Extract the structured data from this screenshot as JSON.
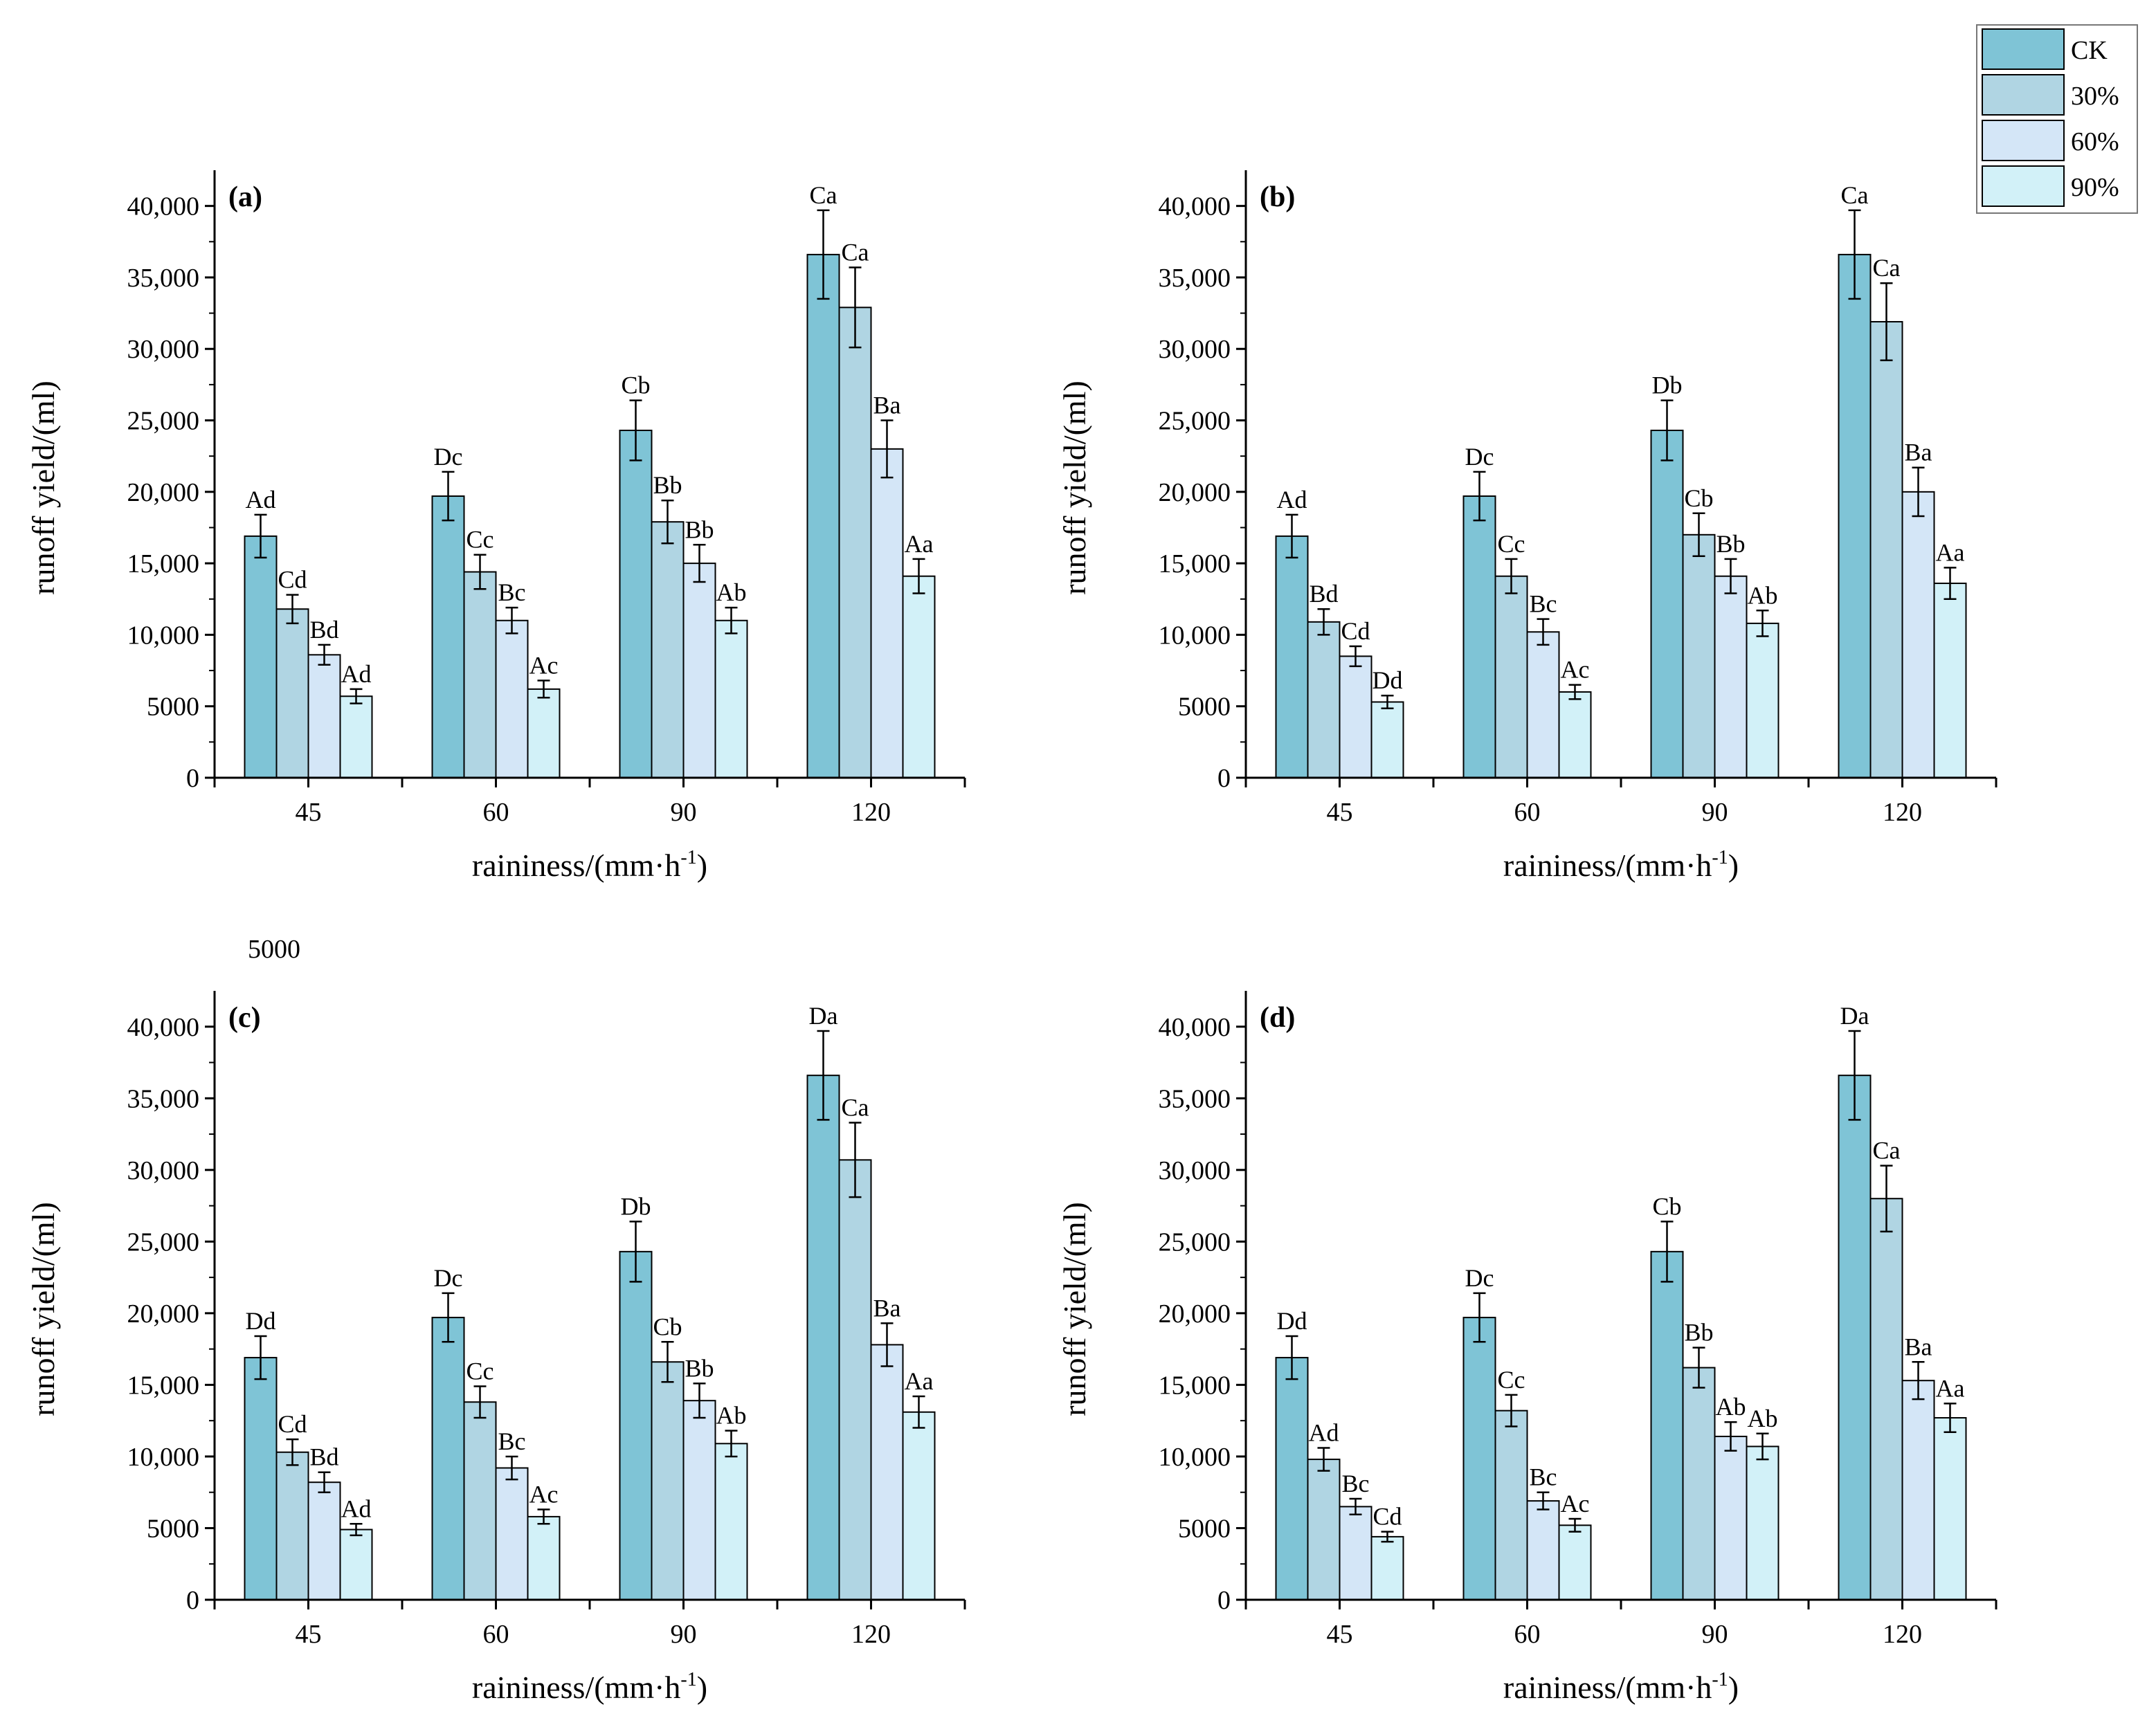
{
  "legend": {
    "entries": [
      "CK",
      "30%",
      "60%",
      "90%"
    ],
    "colors": [
      "#7fc4d6",
      "#b0d5e3",
      "#d4e6f7",
      "#d2f1f8"
    ]
  },
  "stray_text": "5000",
  "chart_data": [
    {
      "type": "bar",
      "panel": "(a)",
      "xlabel": "raininess/(mm·h",
      "xlabel_sup": "-1",
      "xlabel_end": ")",
      "ylabel": "runoff  yield/(ml)",
      "ylim": [
        0,
        42500
      ],
      "yticks": [
        0,
        5000,
        10000,
        15000,
        20000,
        25000,
        30000,
        35000,
        40000
      ],
      "ytick_labels": [
        "0",
        "5000",
        "10,000",
        "15,000",
        "20,000",
        "25,000",
        "30,000",
        "35,000",
        "40,000"
      ],
      "categories": [
        "45",
        "60",
        "90",
        "120"
      ],
      "series": [
        {
          "name": "CK",
          "values": [
            16900,
            19700,
            24300,
            36600
          ],
          "errors": [
            1500,
            1700,
            2100,
            3100
          ],
          "labels": [
            "Ad",
            "Dc",
            "Cb",
            "Ca"
          ]
        },
        {
          "name": "30%",
          "values": [
            11800,
            14400,
            17900,
            32900
          ],
          "errors": [
            1000,
            1200,
            1500,
            2800
          ],
          "labels": [
            "Cd",
            "Cc",
            "Bb",
            "Ca"
          ]
        },
        {
          "name": "60%",
          "values": [
            8600,
            11000,
            15000,
            23000
          ],
          "errors": [
            700,
            900,
            1300,
            2000
          ],
          "labels": [
            "Bd",
            "Bc",
            "Bb",
            "Ba"
          ]
        },
        {
          "name": "90%",
          "values": [
            5700,
            6200,
            11000,
            14100
          ],
          "errors": [
            500,
            600,
            900,
            1200
          ],
          "labels": [
            "Ad",
            "Ac",
            "Ab",
            "Aa"
          ]
        }
      ]
    },
    {
      "type": "bar",
      "panel": "(b)",
      "xlabel": "raininess/(mm·h",
      "xlabel_sup": "-1",
      "xlabel_end": ")",
      "ylabel": "runoff  yield/(ml)",
      "ylim": [
        0,
        42500
      ],
      "yticks": [
        0,
        5000,
        10000,
        15000,
        20000,
        25000,
        30000,
        35000,
        40000
      ],
      "ytick_labels": [
        "0",
        "5000",
        "10,000",
        "15,000",
        "20,000",
        "25,000",
        "30,000",
        "35,000",
        "40,000"
      ],
      "categories": [
        "45",
        "60",
        "90",
        "120"
      ],
      "series": [
        {
          "name": "CK",
          "values": [
            16900,
            19700,
            24300,
            36600
          ],
          "errors": [
            1500,
            1700,
            2100,
            3100
          ],
          "labels": [
            "Ad",
            "Dc",
            "Db",
            "Ca"
          ]
        },
        {
          "name": "30%",
          "values": [
            10900,
            14100,
            17000,
            31900
          ],
          "errors": [
            900,
            1200,
            1500,
            2700
          ],
          "labels": [
            "Bd",
            "Cc",
            "Cb",
            "Ca"
          ]
        },
        {
          "name": "60%",
          "values": [
            8500,
            10200,
            14100,
            20000
          ],
          "errors": [
            700,
            900,
            1200,
            1700
          ],
          "labels": [
            "Cd",
            "Bc",
            "Bb",
            "Ba"
          ]
        },
        {
          "name": "90%",
          "values": [
            5300,
            6000,
            10800,
            13600
          ],
          "errors": [
            450,
            500,
            900,
            1100
          ],
          "labels": [
            "Dd",
            "Ac",
            "Ab",
            "Aa"
          ]
        }
      ]
    },
    {
      "type": "bar",
      "panel": "(c)",
      "xlabel": "raininess/(mm·h",
      "xlabel_sup": "-1",
      "xlabel_end": ")",
      "ylabel": "runoff  yield/(ml)",
      "ylim": [
        0,
        42500
      ],
      "yticks": [
        0,
        5000,
        10000,
        15000,
        20000,
        25000,
        30000,
        35000,
        40000
      ],
      "ytick_labels": [
        "0",
        "5000",
        "10,000",
        "15,000",
        "20,000",
        "25,000",
        "30,000",
        "35,000",
        "40,000"
      ],
      "categories": [
        "45",
        "60",
        "90",
        "120"
      ],
      "series": [
        {
          "name": "CK",
          "values": [
            16900,
            19700,
            24300,
            36600
          ],
          "errors": [
            1500,
            1700,
            2100,
            3100
          ],
          "labels": [
            "Dd",
            "Dc",
            "Db",
            "Da"
          ]
        },
        {
          "name": "30%",
          "values": [
            10300,
            13800,
            16600,
            30700
          ],
          "errors": [
            900,
            1100,
            1400,
            2600
          ],
          "labels": [
            "Cd",
            "Cc",
            "Cb",
            "Ca"
          ]
        },
        {
          "name": "60%",
          "values": [
            8200,
            9200,
            13900,
            17800
          ],
          "errors": [
            700,
            800,
            1200,
            1500
          ],
          "labels": [
            "Bd",
            "Bc",
            "Bb",
            "Ba"
          ]
        },
        {
          "name": "90%",
          "values": [
            4900,
            5800,
            10900,
            13100
          ],
          "errors": [
            400,
            500,
            900,
            1100
          ],
          "labels": [
            "Ad",
            "Ac",
            "Ab",
            "Aa"
          ]
        }
      ]
    },
    {
      "type": "bar",
      "panel": "(d)",
      "xlabel": "raininess/(mm·h",
      "xlabel_sup": "-1",
      "xlabel_end": ")",
      "ylabel": "runoff  yield/(ml)",
      "ylim": [
        0,
        42500
      ],
      "yticks": [
        0,
        5000,
        10000,
        15000,
        20000,
        25000,
        30000,
        35000,
        40000
      ],
      "ytick_labels": [
        "0",
        "5000",
        "10,000",
        "15,000",
        "20,000",
        "25,000",
        "30,000",
        "35,000",
        "40,000"
      ],
      "categories": [
        "45",
        "60",
        "90",
        "120"
      ],
      "series": [
        {
          "name": "CK",
          "values": [
            16900,
            19700,
            24300,
            36600
          ],
          "errors": [
            1500,
            1700,
            2100,
            3100
          ],
          "labels": [
            "Dd",
            "Dc",
            "Cb",
            "Da"
          ]
        },
        {
          "name": "30%",
          "values": [
            9800,
            13200,
            16200,
            28000
          ],
          "errors": [
            800,
            1100,
            1400,
            2300
          ],
          "labels": [
            "Ad",
            "Cc",
            "Bb",
            "Ca"
          ]
        },
        {
          "name": "60%",
          "values": [
            6500,
            6900,
            11400,
            15300
          ],
          "errors": [
            550,
            600,
            1000,
            1300
          ],
          "labels": [
            "Bc",
            "Bc",
            "Ab",
            "Ba"
          ]
        },
        {
          "name": "90%",
          "values": [
            4400,
            5200,
            10700,
            12700
          ],
          "errors": [
            350,
            450,
            900,
            1000
          ],
          "labels": [
            "Cd",
            "Ac",
            "Ab",
            "Aa"
          ]
        }
      ]
    }
  ]
}
